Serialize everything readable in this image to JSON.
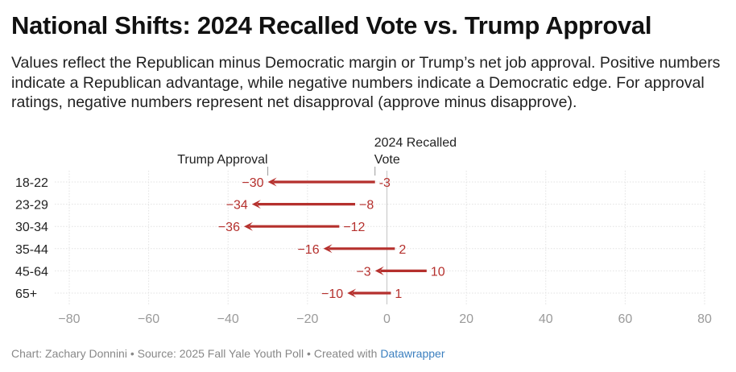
{
  "title": "National Shifts: 2024 Recalled Vote vs. Trump Approval",
  "subtitle": "Values reflect the Republican minus Democratic margin or Trump’s net job approval. Positive numbers indicate a Republican advantage, while negative numbers indicate a Democratic edge. For approval ratings, negative numbers represent net disapproval (approve minus disapprove).",
  "footer": {
    "text": "Chart: Zachary Donnini • Source: 2025 Fall Yale Youth Poll • Created with ",
    "link": "Datawrapper"
  },
  "colors": {
    "arrow": "#b5302d",
    "grid": "#e2e2e2",
    "tick_text": "#9a9a9a"
  },
  "chart_data": {
    "type": "arrow",
    "title": "National Shifts: 2024 Recalled Vote vs. Trump Approval",
    "categories": [
      "18-22",
      "23-29",
      "30-34",
      "35-44",
      "45-64",
      "65+"
    ],
    "series": [
      {
        "name": "2024 Recalled Vote",
        "values": [
          -3,
          -8,
          -12,
          2,
          10,
          1
        ]
      },
      {
        "name": "Trump Approval",
        "values": [
          -30,
          -34,
          -36,
          -16,
          -3,
          -10
        ]
      }
    ],
    "xlim": [
      -80,
      80
    ],
    "xticks": [
      -80,
      -60,
      -40,
      -20,
      0,
      20,
      40,
      60,
      80
    ],
    "xtick_labels": [
      "−80",
      "−60",
      "−40",
      "−20",
      "0",
      "20",
      "40",
      "60",
      "80"
    ],
    "value_labels": {
      "start": [
        "-3",
        "−8",
        "−12",
        "2",
        "10",
        "1"
      ],
      "end": [
        "−30",
        "−34",
        "−36",
        "−16",
        "−3",
        "−10"
      ]
    },
    "annotations": {
      "start_label_lines": [
        "2024 Recalled",
        "Vote"
      ],
      "end_label": "Trump Approval"
    },
    "grid": true
  }
}
